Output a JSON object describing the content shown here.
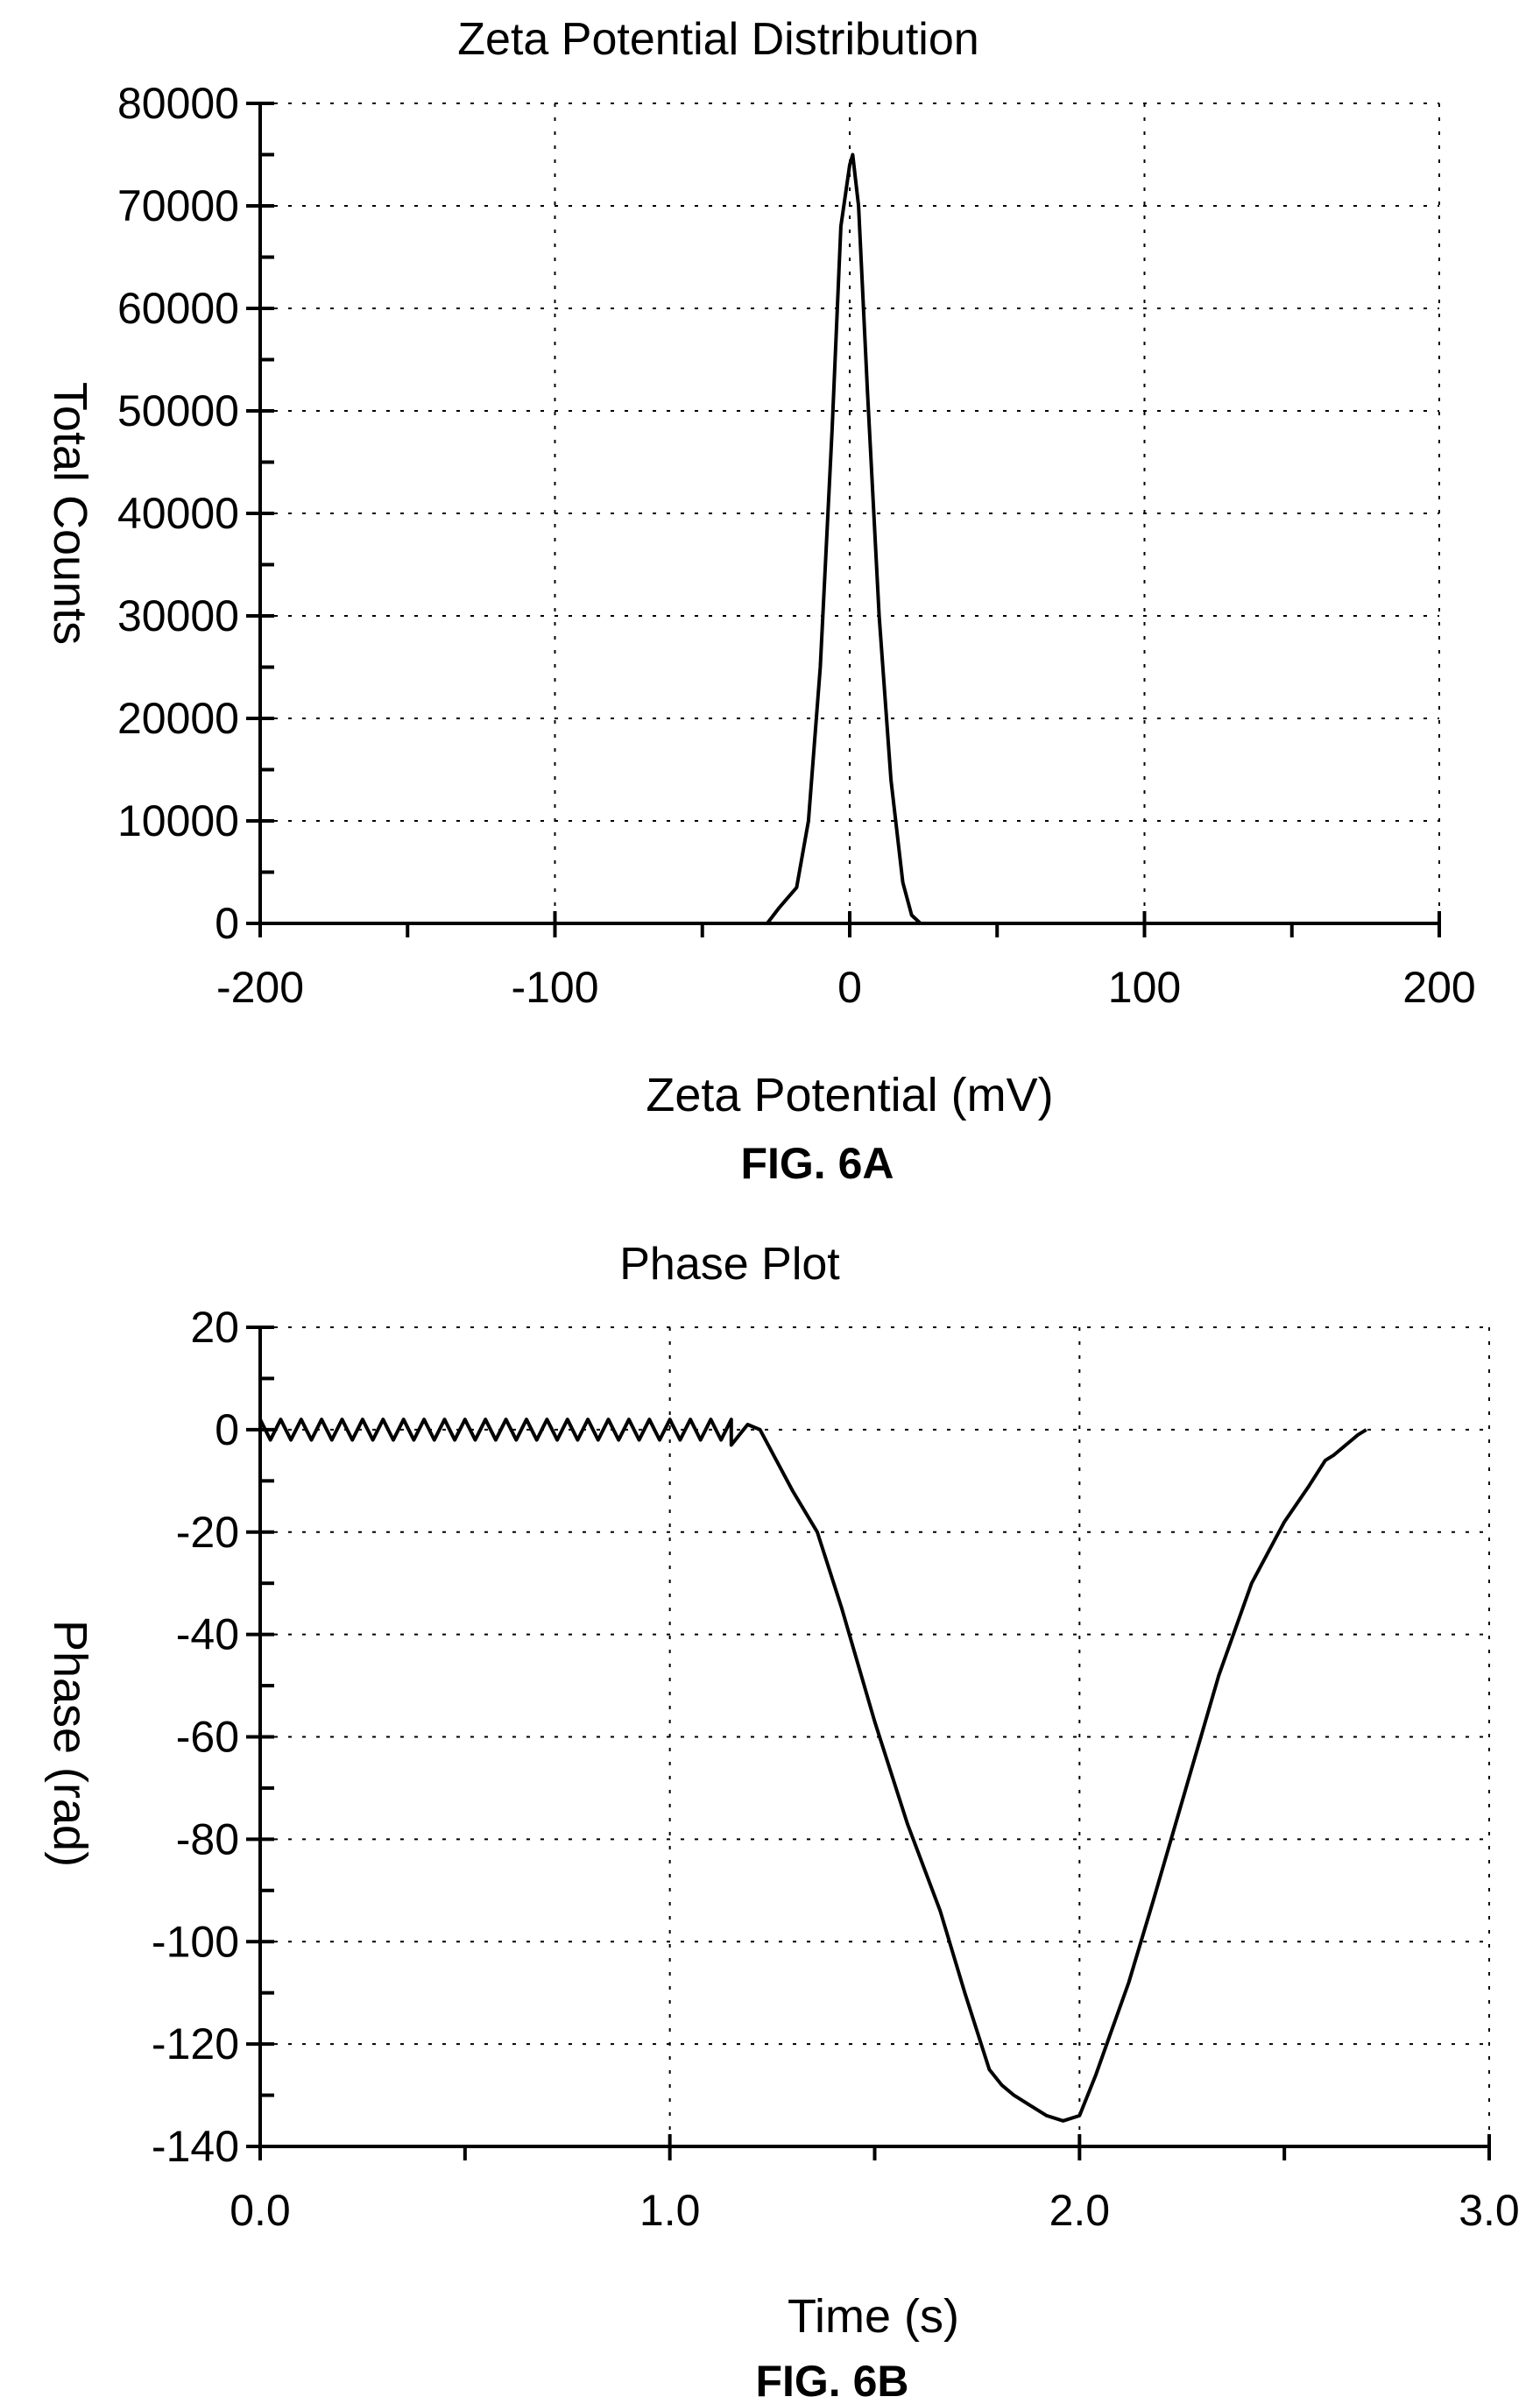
{
  "chart_data": [
    {
      "type": "line",
      "title": "Zeta Potential Distribution",
      "xlabel": "Zeta Potential (mV)",
      "ylabel": "Total Counts",
      "figure_label": "FIG. 6A",
      "xlim": [
        -200,
        200
      ],
      "ylim": [
        0,
        80000
      ],
      "xticks": [
        -200,
        -100,
        0,
        100,
        200
      ],
      "yticks": [
        0,
        10000,
        20000,
        30000,
        40000,
        50000,
        60000,
        70000,
        80000
      ],
      "xtick_labels": [
        "-200",
        "-100",
        "0",
        "100",
        "200"
      ],
      "ytick_labels": [
        "0",
        "10000",
        "20000",
        "30000",
        "40000",
        "50000",
        "60000",
        "70000",
        "80000"
      ],
      "grid": true,
      "series": [
        {
          "x": [
            -150,
            -40,
            -28,
            -24,
            -18,
            -14,
            -10,
            -6,
            -3,
            0,
            1,
            3,
            6,
            10,
            14,
            18,
            21,
            24,
            40,
            150
          ],
          "y": [
            0,
            0,
            0,
            1500,
            3500,
            10000,
            25000,
            48000,
            68000,
            74000,
            75000,
            70000,
            52000,
            30000,
            14000,
            4000,
            800,
            0,
            0,
            0
          ]
        }
      ]
    },
    {
      "type": "line",
      "title": "Phase Plot",
      "xlabel": "Time (s)",
      "ylabel": "Phase (rad)",
      "figure_label": "FIG. 6B",
      "xlim": [
        0,
        3
      ],
      "ylim": [
        -140,
        20
      ],
      "xticks": [
        0,
        1,
        2,
        3
      ],
      "yticks": [
        -140,
        -120,
        -100,
        -80,
        -60,
        -40,
        -20,
        0,
        20
      ],
      "xtick_labels": [
        "0.0",
        "1.0",
        "2.0",
        "3.0"
      ],
      "ytick_labels": [
        "-140",
        "-120",
        "-100",
        "-80",
        "-60",
        "-40",
        "-20",
        "0",
        "20"
      ],
      "grid": true,
      "series": [
        {
          "oscillation": {
            "x_start": 0.0,
            "x_end": 1.15,
            "period": 0.05,
            "center": 0,
            "amplitude": 2
          },
          "x": [
            1.15,
            1.19,
            1.22,
            1.26,
            1.3,
            1.36,
            1.42,
            1.5,
            1.58,
            1.66,
            1.72,
            1.78,
            1.81,
            1.84,
            1.88,
            1.92,
            1.96,
            2.0,
            2.04,
            2.08,
            2.12,
            2.18,
            2.26,
            2.34,
            2.42,
            2.5,
            2.56,
            2.6,
            2.62,
            2.65,
            2.68,
            2.7
          ],
          "y": [
            -3,
            1,
            0,
            -6,
            -12,
            -20,
            -35,
            -57,
            -77,
            -94,
            -110,
            -125,
            -128,
            -130,
            -132,
            -134,
            -135,
            -134,
            -126,
            -117,
            -108,
            -92,
            -70,
            -48,
            -30,
            -18,
            -11,
            -6,
            -5,
            -3,
            -1,
            0
          ]
        }
      ]
    }
  ]
}
